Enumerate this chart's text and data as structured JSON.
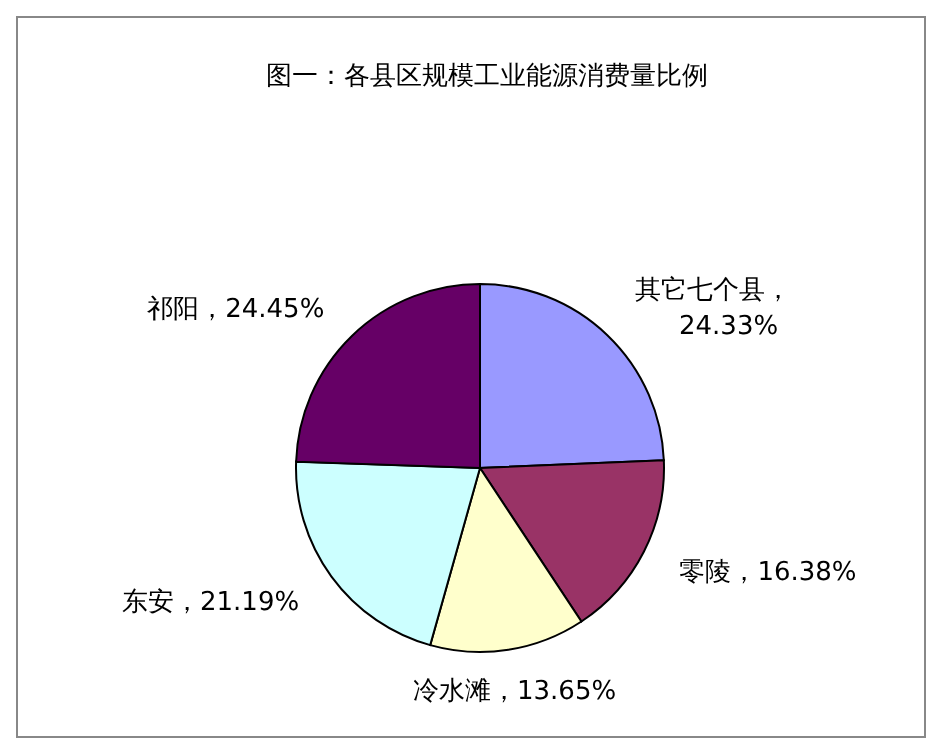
{
  "chart_data": {
    "type": "pie",
    "title": "图一：各县区规模工业能源消费量比例",
    "categories": [
      "其它七个县",
      "零陵",
      "冷水滩",
      "东安",
      "祁阳"
    ],
    "values": [
      24.33,
      16.38,
      13.65,
      21.19,
      24.45
    ],
    "value_labels": [
      "，24.33%",
      "，16.38%",
      "，13.65%",
      "，21.19%",
      "，24.45%"
    ],
    "colors": [
      "#9999ff",
      "#993366",
      "#ffffcc",
      "#ccffff",
      "#660066"
    ]
  }
}
